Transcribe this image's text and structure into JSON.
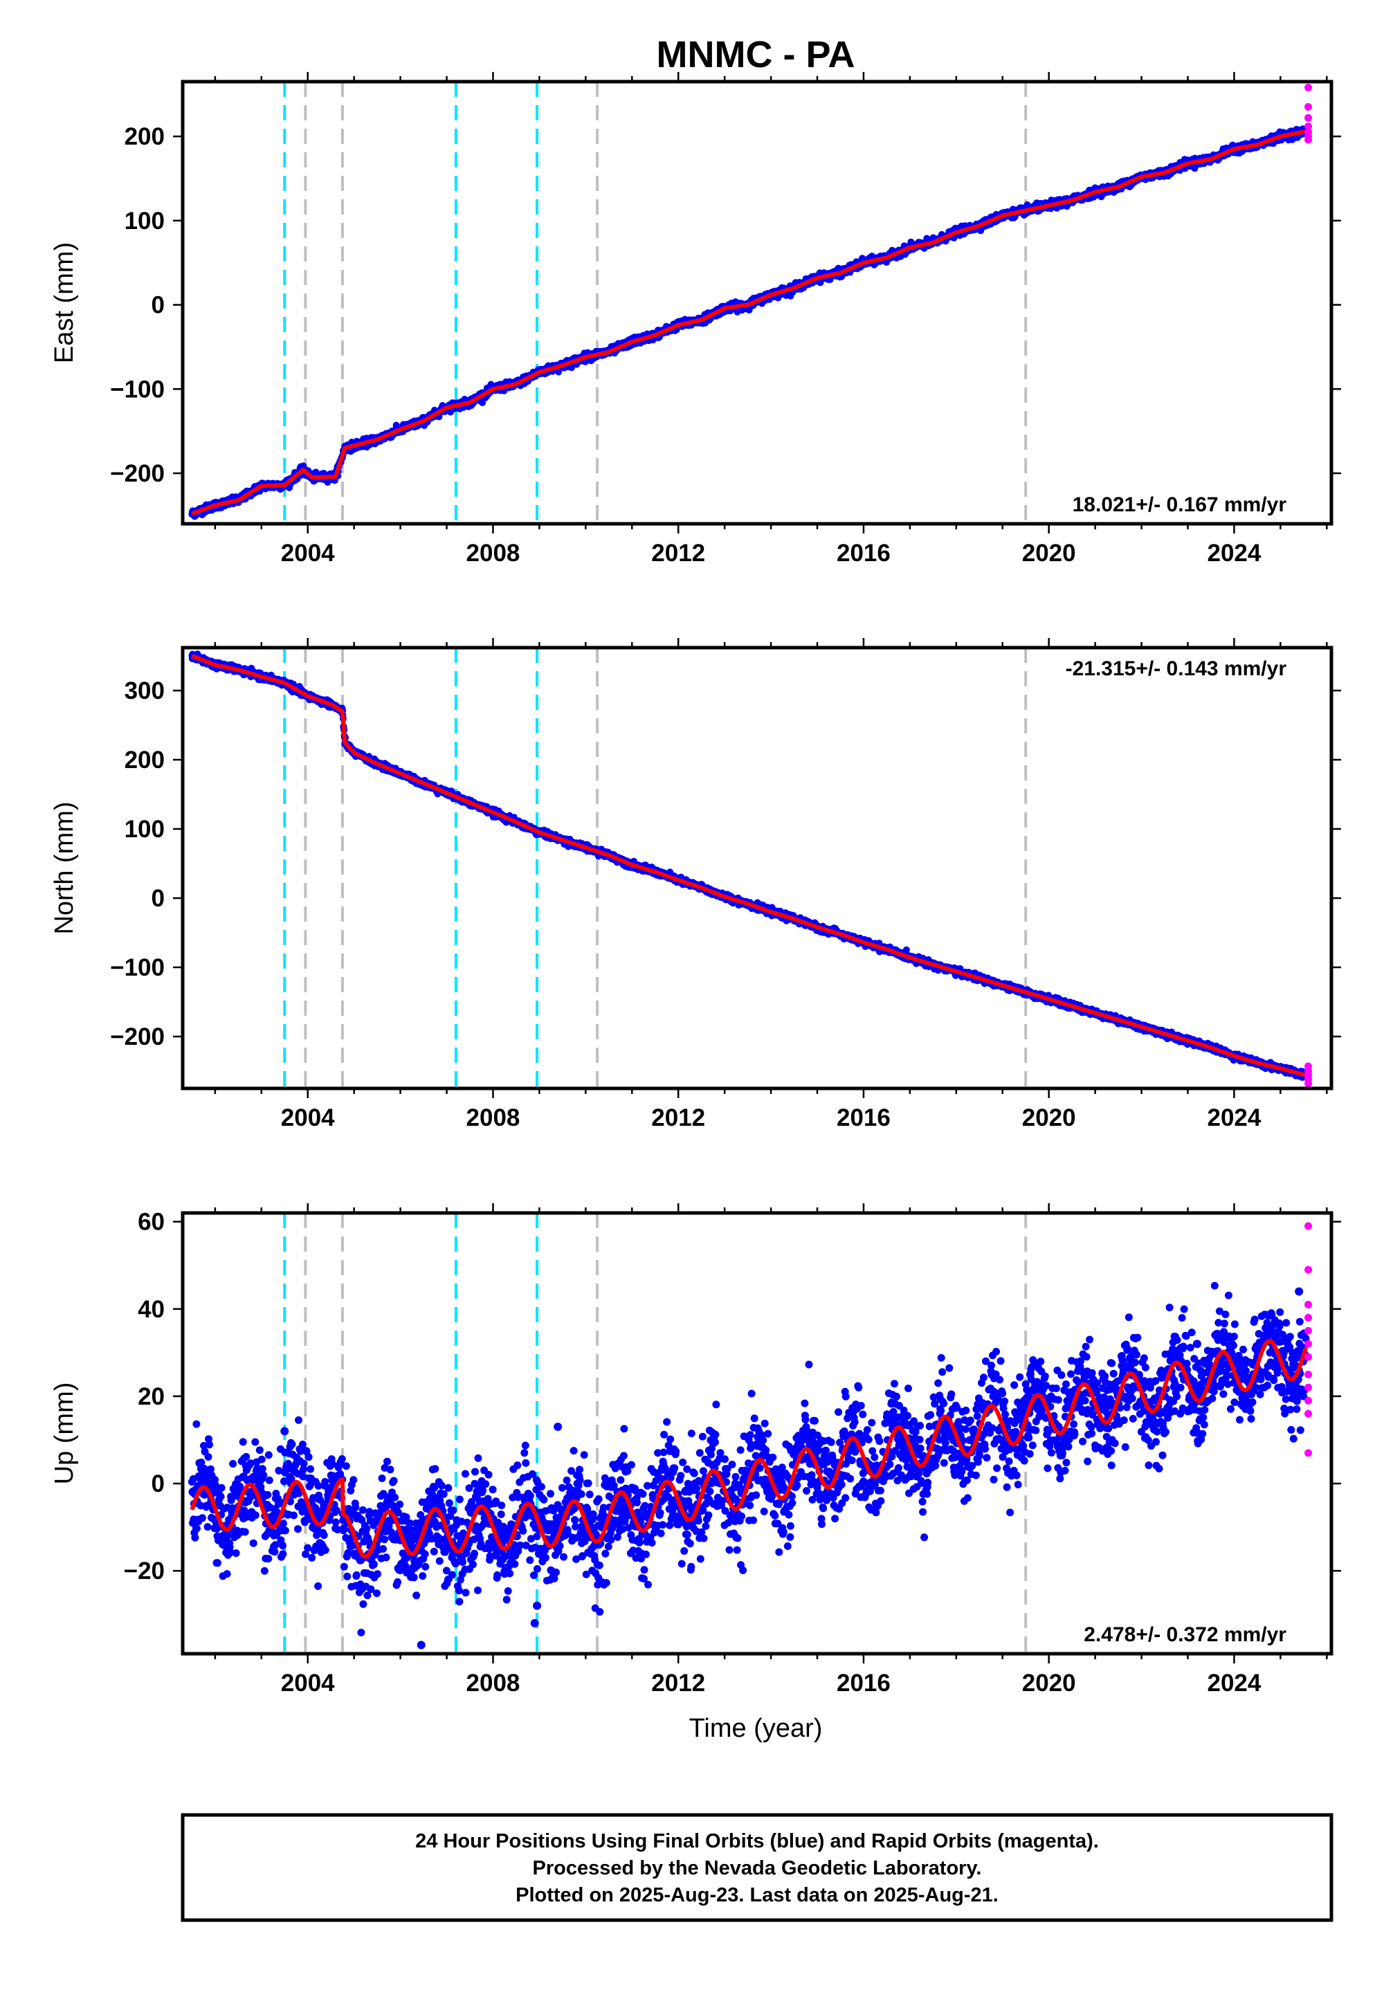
{
  "title": "MNMC - PA",
  "colors": {
    "final_orbits": "#0000ff",
    "rapid_orbits": "#ff00ff",
    "model_fit": "#ff0000",
    "event_cyan": "#00e5ff",
    "event_gray": "#c0c0c0",
    "frame": "#000000"
  },
  "chart_data": [
    {
      "type": "scatter",
      "id": "east",
      "xlabel": "",
      "ylabel": "East (mm)",
      "xlim": [
        2001.3,
        2026.1
      ],
      "ylim": [
        -260,
        265
      ],
      "xticks": [
        2004,
        2008,
        2012,
        2016,
        2020,
        2024
      ],
      "yticks": [
        -200,
        -100,
        0,
        100,
        200
      ],
      "rate_label": "18.021+/- 0.167 mm/yr",
      "rate_position": "bottom-right",
      "series": [
        {
          "label": "Final Orbits",
          "color": "#0000ff",
          "x_start": 2001.5,
          "x_end": 2025.55,
          "points": [
            [
              2001.5,
              -248
            ],
            [
              2002.0,
              -238
            ],
            [
              2002.5,
              -232
            ],
            [
              2003.0,
              -215
            ],
            [
              2003.5,
              -214
            ],
            [
              2003.9,
              -196
            ],
            [
              2004.1,
              -205
            ],
            [
              2004.6,
              -204
            ],
            [
              2004.8,
              -170
            ],
            [
              2005.5,
              -160
            ],
            [
              2006.0,
              -148
            ],
            [
              2006.5,
              -138
            ],
            [
              2007.0,
              -122
            ],
            [
              2007.5,
              -116
            ],
            [
              2008.0,
              -100
            ],
            [
              2008.5,
              -94
            ],
            [
              2009.0,
              -80
            ],
            [
              2009.5,
              -72
            ],
            [
              2010.0,
              -62
            ],
            [
              2010.5,
              -56
            ],
            [
              2011.0,
              -44
            ],
            [
              2011.5,
              -36
            ],
            [
              2012.0,
              -24
            ],
            [
              2012.5,
              -18
            ],
            [
              2013.0,
              -4
            ],
            [
              2013.5,
              0
            ],
            [
              2014.0,
              12
            ],
            [
              2014.5,
              20
            ],
            [
              2015.0,
              32
            ],
            [
              2015.5,
              38
            ],
            [
              2016.0,
              50
            ],
            [
              2016.5,
              56
            ],
            [
              2017.0,
              68
            ],
            [
              2017.5,
              74
            ],
            [
              2018.0,
              86
            ],
            [
              2018.5,
              94
            ],
            [
              2019.0,
              106
            ],
            [
              2019.5,
              112
            ],
            [
              2020.0,
              118
            ],
            [
              2020.5,
              124
            ],
            [
              2021.0,
              134
            ],
            [
              2021.5,
              140
            ],
            [
              2022.0,
              152
            ],
            [
              2022.5,
              157
            ],
            [
              2023.0,
              168
            ],
            [
              2023.5,
              173
            ],
            [
              2024.0,
              185
            ],
            [
              2024.5,
              190
            ],
            [
              2025.0,
              200
            ],
            [
              2025.55,
              206
            ]
          ]
        },
        {
          "label": "Rapid Orbits",
          "color": "#ff00ff",
          "x_start": 2025.55,
          "x_end": 2025.65,
          "points": [
            [
              2025.6,
              258
            ],
            [
              2025.6,
              235
            ],
            [
              2025.6,
              222
            ],
            [
              2025.6,
              212
            ],
            [
              2025.6,
              205
            ],
            [
              2025.6,
              200
            ],
            [
              2025.6,
              196
            ]
          ]
        }
      ],
      "events_cyan": [
        2003.5,
        2007.2,
        2008.95
      ],
      "events_gray": [
        2003.95,
        2004.75,
        2010.25,
        2019.5
      ]
    },
    {
      "type": "scatter",
      "id": "north",
      "xlabel": "",
      "ylabel": "North (mm)",
      "xlim": [
        2001.3,
        2026.1
      ],
      "ylim": [
        -275,
        362
      ],
      "xticks": [
        2004,
        2008,
        2012,
        2016,
        2020,
        2024
      ],
      "yticks": [
        -200,
        -100,
        0,
        100,
        200,
        300
      ],
      "rate_label": "-21.315+/- 0.143 mm/yr",
      "rate_position": "top-right",
      "series": [
        {
          "label": "Final Orbits",
          "color": "#0000ff",
          "x_start": 2001.5,
          "x_end": 2025.55,
          "points": [
            [
              2001.5,
              350
            ],
            [
              2002.0,
              337
            ],
            [
              2002.5,
              330
            ],
            [
              2003.0,
              320
            ],
            [
              2003.5,
              311
            ],
            [
              2004.0,
              292
            ],
            [
              2004.5,
              280
            ],
            [
              2004.75,
              270
            ],
            [
              2004.8,
              225
            ],
            [
              2005.0,
              210
            ],
            [
              2005.5,
              194
            ],
            [
              2006.0,
              180
            ],
            [
              2006.5,
              166
            ],
            [
              2007.0,
              152
            ],
            [
              2007.5,
              138
            ],
            [
              2008.0,
              124
            ],
            [
              2008.5,
              110
            ],
            [
              2009.0,
              95
            ],
            [
              2009.5,
              84
            ],
            [
              2010.0,
              73
            ],
            [
              2010.5,
              62
            ],
            [
              2011.0,
              48
            ],
            [
              2011.5,
              38
            ],
            [
              2012.0,
              26
            ],
            [
              2012.5,
              15
            ],
            [
              2013.0,
              2
            ],
            [
              2013.5,
              -8
            ],
            [
              2014.0,
              -20
            ],
            [
              2014.5,
              -30
            ],
            [
              2015.0,
              -42
            ],
            [
              2015.5,
              -52
            ],
            [
              2016.0,
              -64
            ],
            [
              2016.5,
              -74
            ],
            [
              2017.0,
              -86
            ],
            [
              2017.5,
              -96
            ],
            [
              2018.0,
              -106
            ],
            [
              2018.5,
              -116
            ],
            [
              2019.0,
              -126
            ],
            [
              2019.5,
              -136
            ],
            [
              2020.0,
              -146
            ],
            [
              2020.5,
              -156
            ],
            [
              2021.0,
              -166
            ],
            [
              2021.5,
              -176
            ],
            [
              2022.0,
              -186
            ],
            [
              2022.5,
              -196
            ],
            [
              2023.0,
              -206
            ],
            [
              2023.5,
              -216
            ],
            [
              2024.0,
              -228
            ],
            [
              2024.5,
              -238
            ],
            [
              2025.0,
              -246
            ],
            [
              2025.55,
              -256
            ]
          ]
        },
        {
          "label": "Rapid Orbits",
          "color": "#ff00ff",
          "x_start": 2025.55,
          "x_end": 2025.65,
          "points": [
            [
              2025.6,
              -243
            ],
            [
              2025.6,
              -250
            ],
            [
              2025.6,
              -256
            ],
            [
              2025.6,
              -262
            ],
            [
              2025.6,
              -268
            ]
          ]
        }
      ],
      "events_cyan": [
        2003.5,
        2007.2,
        2008.95
      ],
      "events_gray": [
        2003.95,
        2004.75,
        2010.25,
        2019.5
      ]
    },
    {
      "type": "scatter",
      "id": "up",
      "xlabel": "Time (year)",
      "ylabel": "Up (mm)",
      "xlim": [
        2001.3,
        2026.1
      ],
      "ylim": [
        -39,
        62
      ],
      "xticks": [
        2004,
        2008,
        2012,
        2016,
        2020,
        2024
      ],
      "yticks": [
        -20,
        0,
        20,
        40,
        60
      ],
      "rate_label": "2.478+/- 0.372 mm/yr",
      "rate_position": "bottom-right",
      "model": {
        "trend_start": -6,
        "step_2004_75": -8,
        "rate_before_2010": 0.6,
        "rate_after": 2.478,
        "annual_amplitude": 5
      },
      "series": [
        {
          "label": "Final Orbits",
          "color": "#0000ff",
          "x_start": 2001.5,
          "x_end": 2025.55,
          "scatter_mm": 5.5,
          "outliers": [
            [
              2006.45,
              -37
            ],
            [
              2008.9,
              -32
            ],
            [
              2008.95,
              -28
            ],
            [
              2009.4,
              13
            ],
            [
              2003.5,
              12
            ],
            [
              2025.4,
              44
            ],
            [
              2023.2,
              32
            ],
            [
              2019.6,
              25
            ]
          ]
        },
        {
          "label": "Rapid Orbits",
          "color": "#ff00ff",
          "x_start": 2025.55,
          "x_end": 2025.65,
          "points": [
            [
              2025.6,
              59
            ],
            [
              2025.6,
              49
            ],
            [
              2025.6,
              41
            ],
            [
              2025.6,
              38
            ],
            [
              2025.6,
              35
            ],
            [
              2025.6,
              32
            ],
            [
              2025.6,
              29
            ],
            [
              2025.6,
              25
            ],
            [
              2025.6,
              22
            ],
            [
              2025.6,
              19
            ],
            [
              2025.6,
              16
            ],
            [
              2025.6,
              7
            ]
          ]
        }
      ],
      "events_cyan": [
        2003.5,
        2007.2,
        2008.95
      ],
      "events_gray": [
        2003.95,
        2004.75,
        2010.25,
        2019.5
      ]
    }
  ],
  "footer": {
    "line1": "24 Hour Positions Using Final Orbits (blue) and Rapid Orbits (magenta).",
    "line2": "Processed by the Nevada Geodetic Laboratory.",
    "line3": "Plotted on 2025-Aug-23. Last data on 2025-Aug-21."
  }
}
